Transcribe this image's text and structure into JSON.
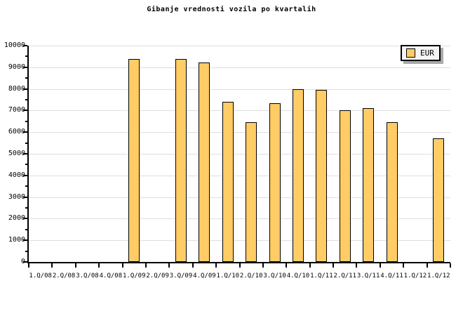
{
  "title": "Gibanje vrednosti vozila po kvartalih",
  "legend": {
    "label": "EUR"
  },
  "colors": {
    "bar_fill": "#FFCC66",
    "bar_border": "#000000",
    "grid": "#DEDEDE",
    "axis": "#000000",
    "background": "#FFFFFF",
    "legend_bg": "#F4F4F4",
    "legend_shadow": "#A9A9A9"
  },
  "chart_data": {
    "type": "bar",
    "title": "Gibanje vrednosti vozila po kvartalih",
    "categories": [
      "1.Q/08",
      "2.Q/08",
      "3.Q/08",
      "4.Q/08",
      "1.Q/09",
      "2.Q/09",
      "3.Q/09",
      "4.Q/09",
      "1.Q/10",
      "2.Q/10",
      "3.Q/10",
      "4.Q/10",
      "1.Q/11",
      "2.Q/11",
      "3.Q/11",
      "4.Q/11",
      "1.Q/12",
      "1.Q/12"
    ],
    "series": [
      {
        "name": "EUR",
        "color": "#FFCC66",
        "values": [
          null,
          null,
          null,
          null,
          9380,
          null,
          9380,
          9210,
          7390,
          6450,
          7330,
          8000,
          7950,
          7000,
          7120,
          6450,
          null,
          5710
        ]
      }
    ],
    "xlabel": "",
    "ylabel": "",
    "ylim": [
      0,
      10000
    ],
    "ytick_step": 1000,
    "minor_ytick_step": 500,
    "y_tick_labels": [
      "0",
      "1000",
      "2000",
      "3000",
      "4000",
      "5000",
      "6000",
      "7000",
      "8000",
      "9000",
      "10000"
    ],
    "grid": "horizontal",
    "legend_position": "top-right"
  }
}
